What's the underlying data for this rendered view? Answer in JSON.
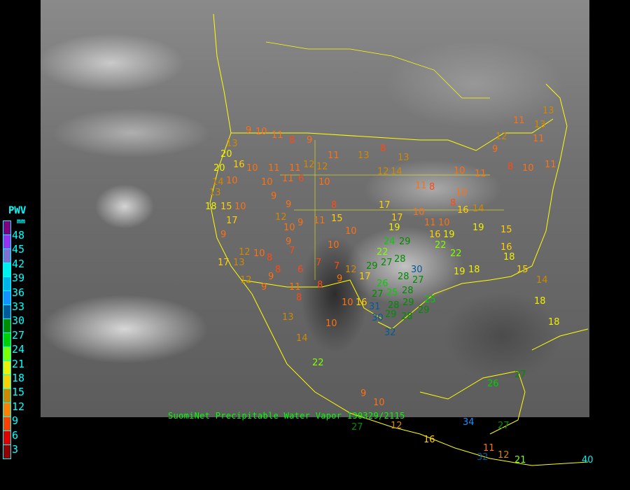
{
  "caption": "SuomiNet Precipitable Water Vapor 130329/2115",
  "legend": {
    "title": "PWV",
    "unit": "mm",
    "colors": [
      "#800080",
      "#9a30f0",
      "#8070d0",
      "#00f0f0",
      "#00b4e8",
      "#1890ff",
      "#005a9a",
      "#008c00",
      "#00d000",
      "#80ff00",
      "#f0f000",
      "#ffd000",
      "#d08800",
      "#ff8000",
      "#ff4000",
      "#e00000",
      "#900000"
    ],
    "labels": [
      "48",
      "45",
      "42",
      "39",
      "36",
      "33",
      "30",
      "27",
      "24",
      "21",
      "18",
      "15",
      "12",
      "9",
      "6",
      "3"
    ]
  },
  "colors": {
    "borders": "#ffff00",
    "caption": "#00ff00",
    "legend_text": "#00ffff"
  },
  "stations": [
    9,
    10,
    11,
    13,
    20,
    16,
    10,
    20,
    11,
    14,
    10,
    13,
    15,
    17,
    18,
    9,
    10,
    12,
    10,
    17,
    13,
    8,
    8,
    9,
    9,
    12,
    11,
    8,
    6,
    7,
    8,
    10,
    9,
    7,
    12,
    10,
    16,
    17,
    11,
    11,
    12,
    12,
    11,
    8,
    9,
    6,
    10,
    10,
    9,
    9,
    12,
    10,
    9,
    11,
    15,
    8,
    10,
    9,
    7,
    13,
    8,
    14,
    12,
    13,
    11,
    8,
    10,
    17,
    19,
    17,
    11,
    10,
    16,
    19,
    10,
    8,
    16,
    14,
    11,
    10,
    22,
    22,
    19,
    18,
    19,
    16,
    18,
    15,
    15,
    14,
    18,
    18,
    12,
    11,
    13,
    13,
    11,
    11,
    10,
    8,
    9,
    24,
    22,
    29,
    28,
    27,
    29,
    28,
    27,
    30,
    26,
    27,
    25,
    28,
    29,
    28,
    29,
    25,
    29,
    28,
    30,
    31,
    32,
    13,
    10,
    14,
    22,
    9,
    10,
    26,
    27,
    34,
    27,
    16,
    11,
    12,
    21,
    32,
    40,
    27,
    12
  ]
}
